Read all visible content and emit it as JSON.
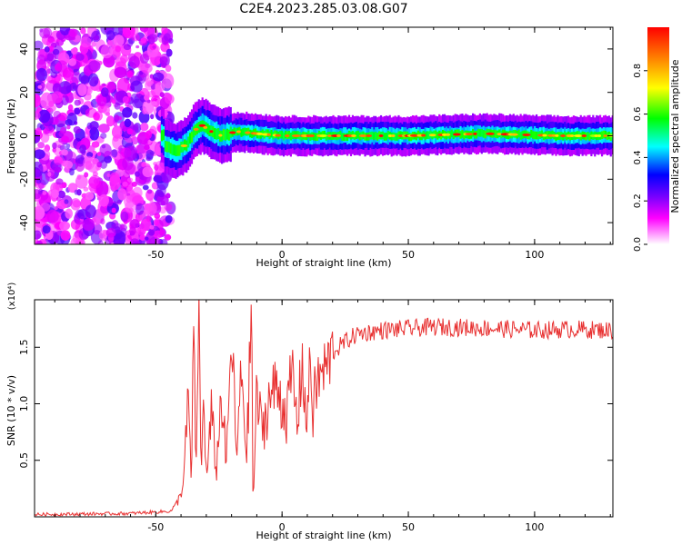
{
  "figure": {
    "title": "C2E4.2023.285.03.08.G07"
  },
  "chart_data": [
    {
      "type": "heatmap",
      "xlabel": "Height of straight line (km)",
      "ylabel": "Frequency (Hz)",
      "xlim": [
        -98,
        131
      ],
      "ylim": [
        -50,
        50
      ],
      "xticks": [
        {
          "value": -50,
          "label": "-50"
        },
        {
          "value": 0,
          "label": "0"
        },
        {
          "value": 50,
          "label": "50"
        },
        {
          "value": 100,
          "label": "100"
        }
      ],
      "yticks": [
        {
          "value": 40,
          "label": "40"
        },
        {
          "value": 20,
          "label": "20"
        },
        {
          "value": 0,
          "label": "0"
        },
        {
          "value": -20,
          "label": "-20"
        },
        {
          "value": -40,
          "label": "-40"
        }
      ],
      "colorbar": {
        "label": "Normalized spectral amplitude",
        "range": [
          0,
          1
        ],
        "ticks": [
          {
            "value": 0.0,
            "label": "0.0"
          },
          {
            "value": 0.2,
            "label": "0.2"
          },
          {
            "value": 0.4,
            "label": "0.4"
          },
          {
            "value": 0.6,
            "label": "0.6"
          },
          {
            "value": 0.8,
            "label": "0.8"
          }
        ],
        "colormap": [
          "#ffffff",
          "#ff00ff",
          "#7700ff",
          "#0000ff",
          "#00ffff",
          "#00ff00",
          "#ffff00",
          "#ff8800",
          "#ff0000"
        ]
      },
      "ridge": [
        {
          "x": -47,
          "y": -5
        },
        {
          "x": -42,
          "y": -7
        },
        {
          "x": -38,
          "y": -4
        },
        {
          "x": -35,
          "y": 2
        },
        {
          "x": -32,
          "y": 5
        },
        {
          "x": -28,
          "y": 2
        },
        {
          "x": -24,
          "y": 0
        },
        {
          "x": -18,
          "y": 2
        },
        {
          "x": -10,
          "y": 1
        },
        {
          "x": 0,
          "y": 0
        },
        {
          "x": 10,
          "y": 0
        },
        {
          "x": 30,
          "y": 0
        },
        {
          "x": 50,
          "y": 0
        },
        {
          "x": 80,
          "y": 1
        },
        {
          "x": 110,
          "y": 0
        },
        {
          "x": 131,
          "y": 0
        }
      ],
      "noise_region": {
        "x": [
          -98,
          -48
        ],
        "y": [
          -50,
          50
        ]
      }
    },
    {
      "type": "line",
      "xlabel": "Height of straight line (km)",
      "ylabel": "SNR (10 * v/v)",
      "yscale_label": "(x10⁴)",
      "xlim": [
        -98,
        131
      ],
      "ylim": [
        0,
        1.92
      ],
      "xticks": [
        {
          "value": -50,
          "label": "-50"
        },
        {
          "value": 0,
          "label": "0"
        },
        {
          "value": 50,
          "label": "50"
        },
        {
          "value": 100,
          "label": "100"
        }
      ],
      "yticks": [
        {
          "value": 0.5,
          "label": "0.5"
        },
        {
          "value": 1.0,
          "label": "1.0"
        },
        {
          "value": 1.5,
          "label": "1.5"
        }
      ],
      "series": [
        {
          "color": "#e83030",
          "points": [
            [
              -98,
              0.02
            ],
            [
              -60,
              0.03
            ],
            [
              -44,
              0.05
            ],
            [
              -41,
              0.15
            ],
            [
              -39,
              0.3
            ],
            [
              -37,
              1.1
            ],
            [
              -36,
              0.25
            ],
            [
              -35,
              1.55
            ],
            [
              -34,
              0.4
            ],
            [
              -33,
              1.92
            ],
            [
              -32,
              0.3
            ],
            [
              -31,
              1.2
            ],
            [
              -30,
              0.3
            ],
            [
              -28,
              0.9
            ],
            [
              -26,
              0.4
            ],
            [
              -24,
              1.1
            ],
            [
              -22,
              0.45
            ],
            [
              -20,
              1.6
            ],
            [
              -18,
              0.5
            ],
            [
              -16,
              1.3
            ],
            [
              -14,
              0.55
            ],
            [
              -12,
              1.9
            ],
            [
              -11.5,
              0.05
            ],
            [
              -10,
              1.1
            ],
            [
              -8,
              0.75
            ],
            [
              -5,
              1.05
            ],
            [
              -2,
              1.15
            ],
            [
              2,
              0.9
            ],
            [
              4,
              1.3
            ],
            [
              6,
              0.8
            ],
            [
              8,
              1.4
            ],
            [
              10,
              0.7
            ],
            [
              11,
              1.6
            ],
            [
              12,
              0.9
            ],
            [
              14,
              1.2
            ],
            [
              17,
              1.3
            ],
            [
              20,
              1.45
            ],
            [
              25,
              1.55
            ],
            [
              30,
              1.62
            ],
            [
              40,
              1.65
            ],
            [
              60,
              1.68
            ],
            [
              80,
              1.67
            ],
            [
              100,
              1.65
            ],
            [
              115,
              1.66
            ],
            [
              131,
              1.65
            ]
          ]
        }
      ]
    }
  ]
}
